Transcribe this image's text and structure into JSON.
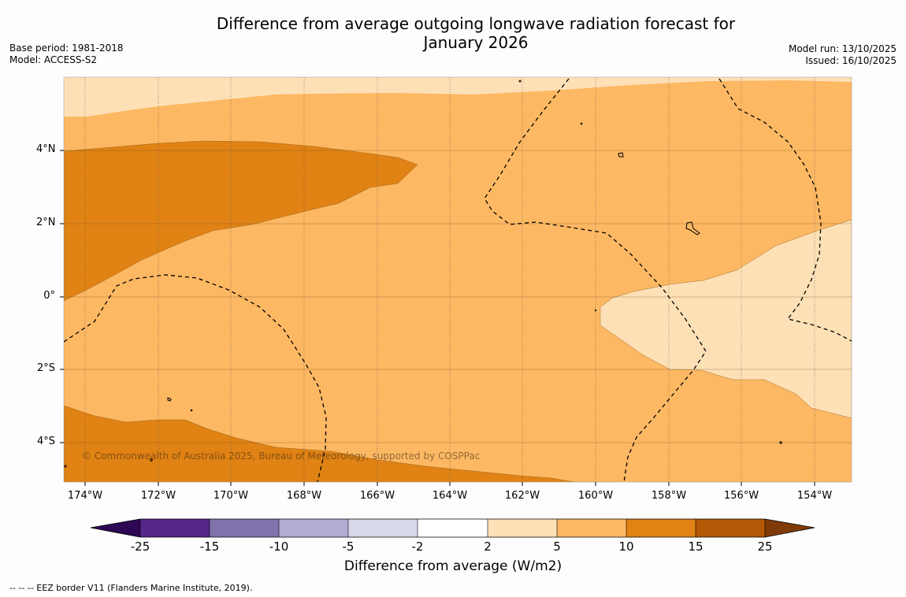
{
  "title_line1": "Difference from average outgoing longwave radiation forecast for",
  "title_line2": "January 2026",
  "meta_left": {
    "base_period": "Base period: 1981-2018",
    "model": "Model: ACCESS-S2"
  },
  "meta_right": {
    "model_run": "Model run: 13/10/2025",
    "issued": "Issued: 16/10/2025"
  },
  "map": {
    "lat_labels": [
      "4°N",
      "2°N",
      "0°",
      "2°S",
      "4°S"
    ],
    "lon_labels": [
      "174°W",
      "172°W",
      "170°W",
      "168°W",
      "166°W",
      "164°W",
      "162°W",
      "160°W",
      "158°W",
      "156°W",
      "154°W"
    ],
    "copyright": "© Commonwealth of Australia 2025, Bureau of Meteorology, supported by COSPPac"
  },
  "colorbar": {
    "ticks": [
      "-25",
      "-15",
      "-10",
      "-5",
      "-2",
      "2",
      "5",
      "10",
      "15",
      "25"
    ],
    "colors": [
      "#2e0854",
      "#542788",
      "#8073ac",
      "#b2abd2",
      "#d8daeb",
      "#ffffff",
      "#fee0b6",
      "#fdb863",
      "#e08214",
      "#b35806",
      "#7f3b08"
    ],
    "title": "Difference from average (W/m2)"
  },
  "legend_footnote": "--  --  -- EEZ border V11 (Flanders Marine Institute, 2019)."
}
